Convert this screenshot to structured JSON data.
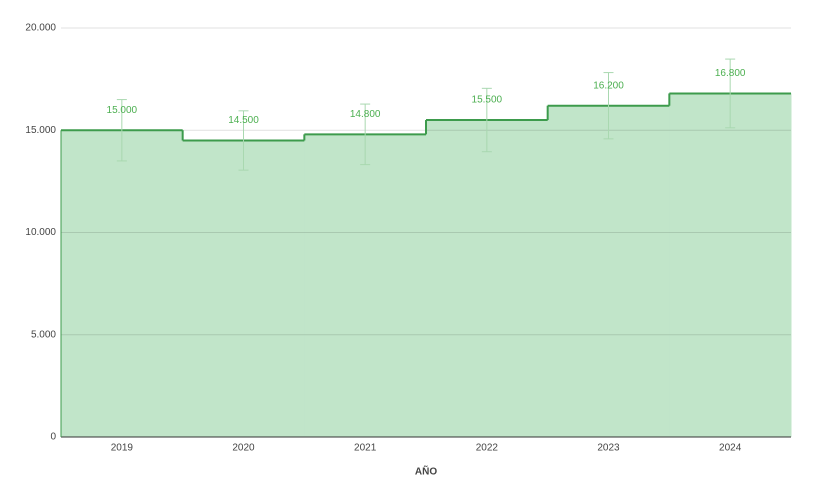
{
  "chart_data": {
    "type": "stepped-area",
    "x_label": "AÑO",
    "categories": [
      "2019",
      "2020",
      "2021",
      "2022",
      "2023",
      "2024"
    ],
    "values": [
      15000,
      14500,
      14800,
      15500,
      16200,
      16800
    ],
    "value_labels": [
      "15.000",
      "14.500",
      "14.800",
      "15.500",
      "16.200",
      "16.800"
    ],
    "errors": [
      1500,
      1450,
      1480,
      1550,
      1620,
      1680
    ],
    "color": "#3d9b4c",
    "fill": "#c1e5c9",
    "error_color": "#a9d8b0",
    "ylim": [
      0,
      20000
    ],
    "yticks": [
      {
        "value": 0,
        "label": "0"
      },
      {
        "value": 5000,
        "label": "5.000"
      },
      {
        "value": 10000,
        "label": "10.000"
      },
      {
        "value": 15000,
        "label": "15.000"
      },
      {
        "value": 20000,
        "label": "20.000"
      }
    ],
    "grid": true
  }
}
